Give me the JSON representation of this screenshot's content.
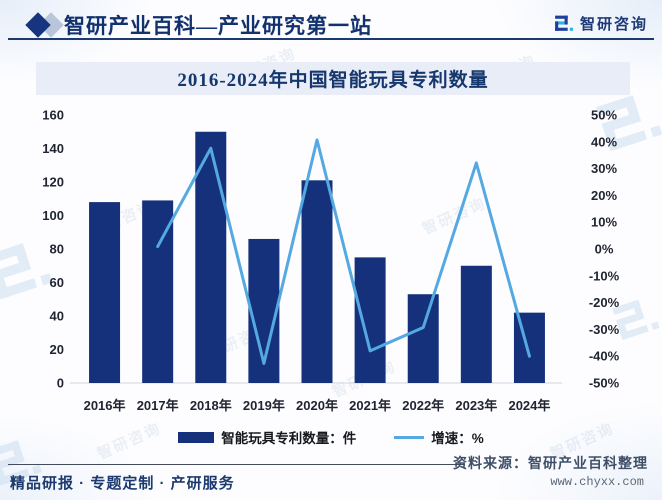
{
  "header": {
    "brand_title": "智研产业百科—产业研究第一站",
    "logo_text": "智研咨询"
  },
  "chart_data": {
    "type": "bar",
    "combo": "bar+line",
    "title": "2016-2024年中国智能玩具专利数量",
    "categories": [
      "2016年",
      "2017年",
      "2018年",
      "2019年",
      "2020年",
      "2021年",
      "2022年",
      "2023年",
      "2024年"
    ],
    "series": [
      {
        "name": "智能玩具专利数量：件",
        "type": "bar",
        "axis": "left",
        "color": "#15317b",
        "values": [
          108,
          109,
          150,
          86,
          121,
          75,
          53,
          70,
          42
        ]
      },
      {
        "name": "增速：%",
        "type": "line",
        "axis": "right",
        "color": "#55a9e2",
        "values": [
          null,
          0.9,
          37.6,
          -42.7,
          40.7,
          -38.0,
          -29.3,
          32.1,
          -40.0
        ]
      }
    ],
    "left_axis": {
      "min": 0,
      "max": 160,
      "ticks": [
        0,
        20,
        40,
        60,
        80,
        100,
        120,
        140,
        160
      ],
      "suffix": ""
    },
    "right_axis": {
      "min": -50,
      "max": 50,
      "ticks": [
        -50,
        -40,
        -30,
        -20,
        -10,
        0,
        10,
        20,
        30,
        40,
        50
      ],
      "suffix": "%"
    },
    "grid": false,
    "legend_position": "bottom"
  },
  "footer": {
    "source": "资料来源：智研产业百科整理",
    "website": "www.chyxx.com",
    "tagline": "精品研报 · 专题定制 · 产研服务"
  },
  "watermark": {
    "text": "智研咨询"
  },
  "colors": {
    "bar": "#15317b",
    "line": "#55a9e2",
    "brand_navy": "#1d3a77",
    "logo_cyan": "#29b5e8",
    "banner_bg": "#e9edf8"
  }
}
